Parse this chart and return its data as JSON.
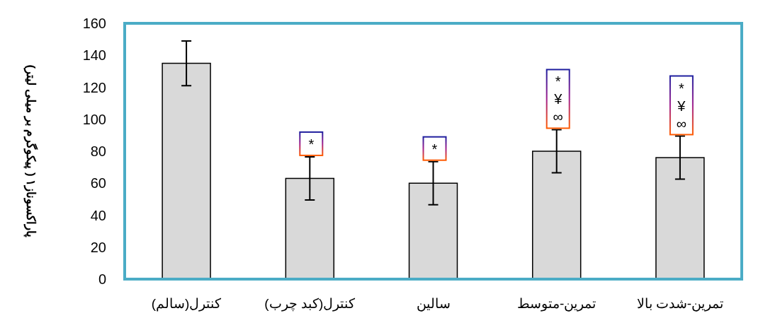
{
  "chart_data": {
    "type": "bar",
    "ylabel": "پاراکسوناز۱ ( پیکوگرم بر میلی لیتر)",
    "categories": [
      "کنترل(سالم)",
      "کنترل(کبد چرب)",
      "سالین",
      "تمرین-متوسط",
      "تمرین-شدت بالا"
    ],
    "values": [
      135,
      63,
      60,
      80,
      76
    ],
    "errors": [
      14,
      13.5,
      13.5,
      13.5,
      13.5
    ],
    "color": "#d9d9d9",
    "ylim": [
      0,
      160
    ],
    "yticks": [
      0,
      20,
      40,
      60,
      80,
      100,
      120,
      140,
      160
    ],
    "grid": false,
    "annotations": [
      {
        "text": "*",
        "x": "کنترل(کبد چرب)",
        "y": 76.5
      },
      {
        "text": "*",
        "x": "سالین",
        "y": 73.5
      },
      {
        "text": "*\n¥\n∞",
        "x": "تمرین-متوسط",
        "y": 93.5
      },
      {
        "text": "*\n¥\n∞",
        "x": "تمرین-شدت بالا",
        "y": 89.5
      }
    ]
  }
}
